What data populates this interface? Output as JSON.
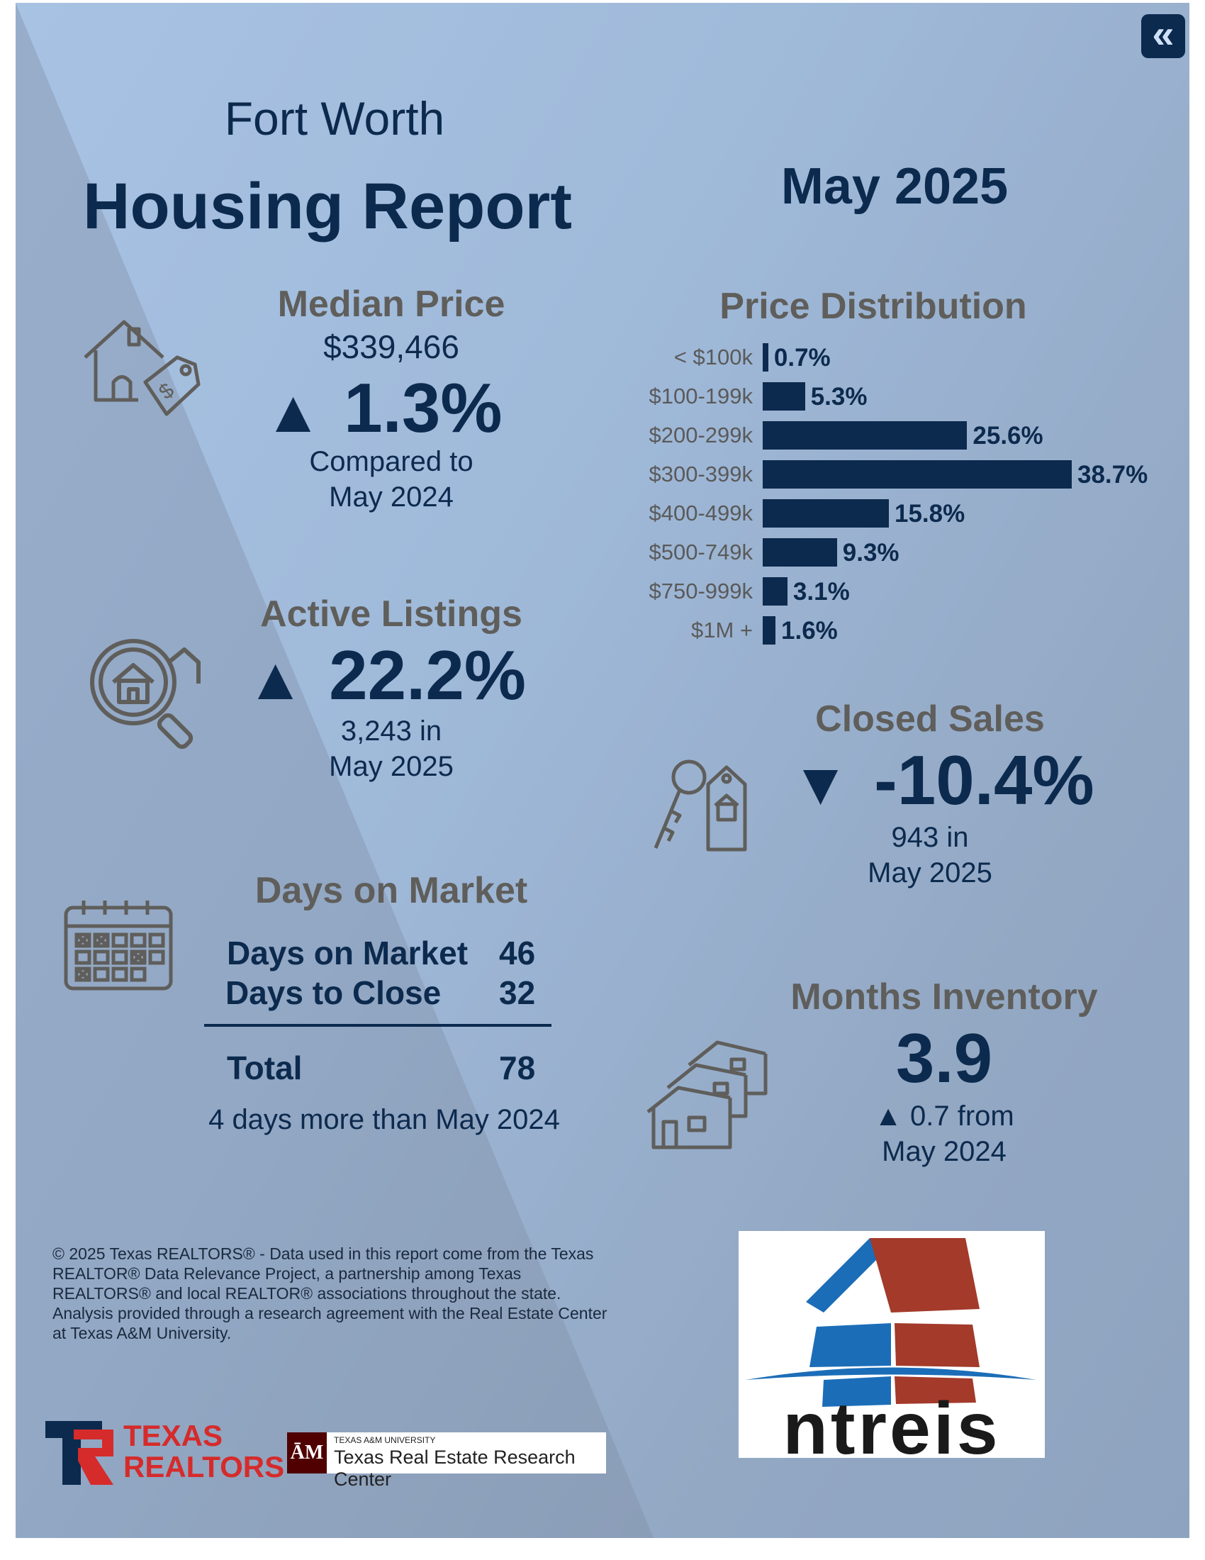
{
  "header": {
    "city": "Fort Worth",
    "report_title": "Housing Report",
    "month": "May 2025",
    "back_icon": "double-chevron-left-icon"
  },
  "median_price": {
    "heading": "Median Price",
    "value": "$339,466",
    "arrow": "▲",
    "change": "1.3%",
    "compare_line1": "Compared to",
    "compare_line2": "May 2024",
    "icon": "house-price-tag-icon"
  },
  "active_listings": {
    "heading": "Active Listings",
    "arrow": "▲",
    "change": "22.2%",
    "count_line": "3,243 in",
    "month_line": "May 2025",
    "icon": "magnifier-house-icon"
  },
  "days_on_market": {
    "heading": "Days on Market",
    "rows": [
      {
        "label": "Days on Market",
        "value": "46"
      },
      {
        "label": "Days to Close",
        "value": "32"
      }
    ],
    "total_label": "Total",
    "total_value": "78",
    "note": "4 days more than May 2024",
    "icon": "calendar-icon"
  },
  "price_distribution": {
    "heading": "Price Distribution"
  },
  "chart_data": {
    "type": "bar",
    "title": "Price Distribution",
    "orientation": "horizontal",
    "categories": [
      "< $100k",
      "$100-199k",
      "$200-299k",
      "$300-399k",
      "$400-499k",
      "$500-749k",
      "$750-999k",
      "$1M +"
    ],
    "values": [
      0.7,
      5.3,
      25.6,
      38.7,
      15.8,
      9.3,
      3.1,
      1.6
    ],
    "value_labels": [
      "0.7%",
      "5.3%",
      "25.6%",
      "38.7%",
      "15.8%",
      "9.3%",
      "3.1%",
      "1.6%"
    ],
    "unit": "%",
    "bar_color": "#0c2a4e"
  },
  "closed_sales": {
    "heading": "Closed Sales",
    "arrow": "▼",
    "change": "-10.4%",
    "count_line": "943 in",
    "month_line": "May 2025",
    "icon": "key-house-tag-icon"
  },
  "months_inventory": {
    "heading": "Months Inventory",
    "value": "3.9",
    "change_line": "▲ 0.7 from",
    "month_line": "May 2024",
    "icon": "stacked-houses-icon"
  },
  "footer": {
    "copyright": "© 2025 Texas REALTORS® - Data used in this report come from the Texas REALTOR® Data Relevance Project, a partnership among Texas REALTORS® and local REALTOR® associations throughout the state. Analysis provided through a research agreement with the Real Estate Center at Texas A&M University.",
    "texas_realtors_line1": "TEXAS",
    "texas_realtors_line2": "REALTORS",
    "tamu_small": "TEXAS A&M UNIVERSITY",
    "tamu_center": "Texas Real Estate Research Center",
    "tamu_mark": "ĀM",
    "ntreis": "ntreis"
  },
  "colors": {
    "navy": "#0c2a4e",
    "heading_grey": "#5f5e5b",
    "background_light": "#a8c2e4",
    "background_dark": "#8699b4",
    "ntreis_red": "#a33a2a",
    "ntreis_blue": "#1c6db8",
    "texas_red": "#d52b2b"
  }
}
